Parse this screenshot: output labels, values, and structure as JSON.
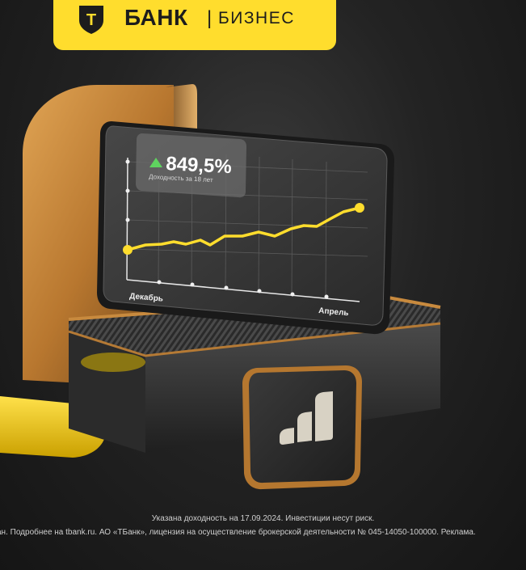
{
  "brand": {
    "letter": "Т",
    "name": "БАНК",
    "separator": "|",
    "sub": "БИЗНЕС",
    "accent": "#ffdd2d"
  },
  "card": {
    "value": "849,5%",
    "caption": "Доходность за 18 лет",
    "trend_icon": "triangle-up-icon",
    "x_start_label": "Декабрь",
    "x_end_label": "Апрель"
  },
  "app_icon": "bar-chart-icon",
  "disclaimer": {
    "line1": "Указана доходность на 17.09.2024. Инвестиции несут риск.",
    "line2": "ан. Подробнее на tbank.ru. АО «ТБанк», лицензия на осуществление брокерской деятельности № 045-14050-100000. Реклама."
  }
}
